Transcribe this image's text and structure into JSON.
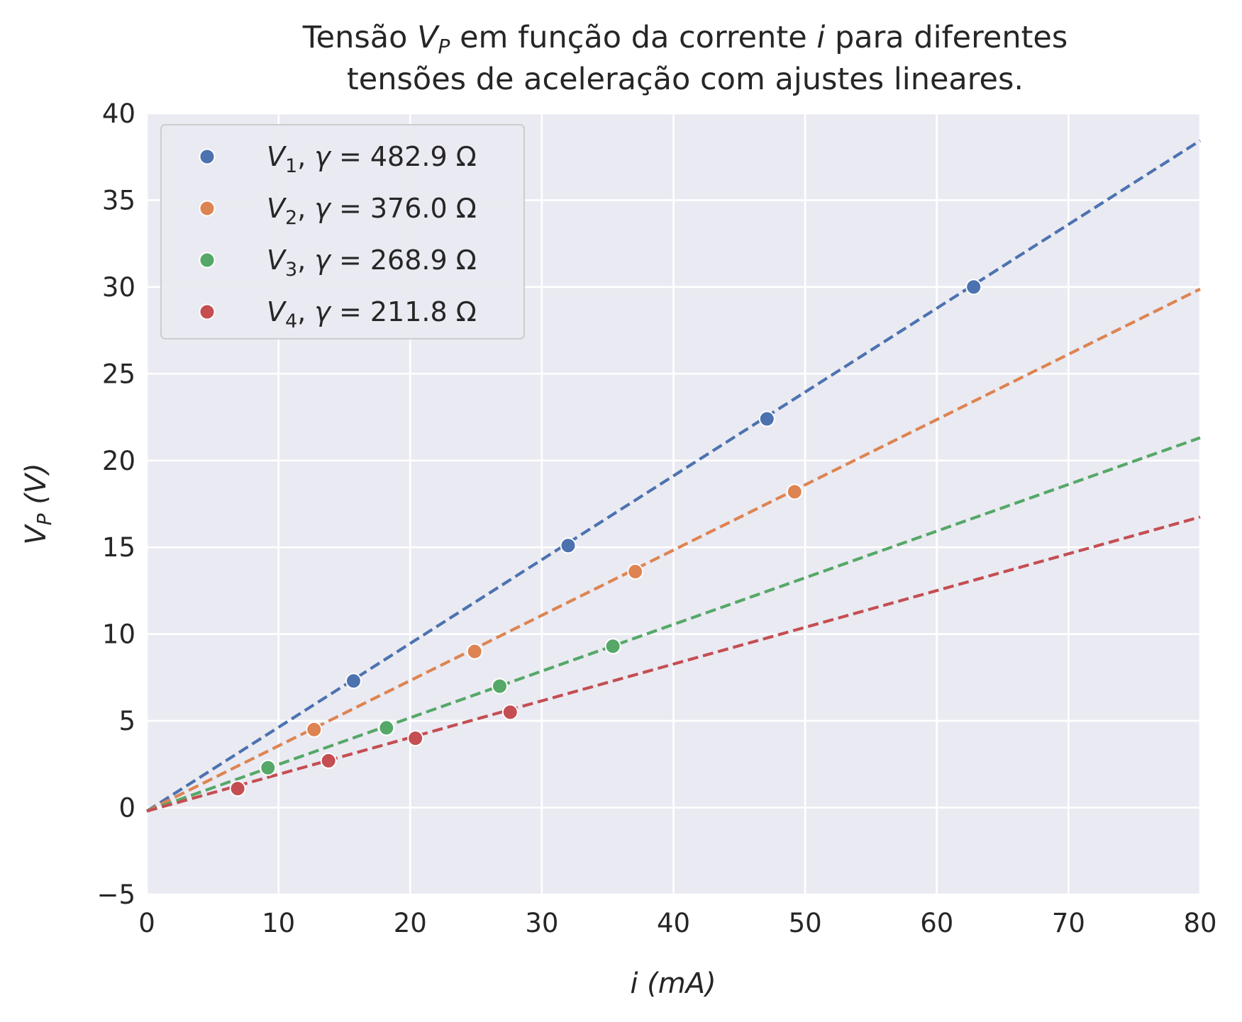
{
  "chart_data": {
    "type": "scatter",
    "title_lines": [
      "Tensão V_P em função da corrente i para diferentes",
      "tensões de aceleração com ajustes lineares."
    ],
    "xlabel": "i (mA)",
    "ylabel": "V_P (V)",
    "xlim": [
      0,
      80
    ],
    "ylim": [
      -5,
      40
    ],
    "x_ticks": [
      0,
      10,
      20,
      30,
      40,
      50,
      60,
      70,
      80
    ],
    "y_ticks": [
      -5,
      0,
      5,
      10,
      15,
      20,
      25,
      30,
      35,
      40
    ],
    "x_tick_labels": [
      "0",
      "10",
      "20",
      "30",
      "40",
      "50",
      "60",
      "70",
      "80"
    ],
    "y_tick_labels": [
      "−5",
      "0",
      "5",
      "10",
      "15",
      "20",
      "25",
      "30",
      "35",
      "40"
    ],
    "grid": true,
    "legend_position": "top-left",
    "series": [
      {
        "name": "V1, γ = 482.9 Ω",
        "color": "#4c72b0",
        "x": [
          15.7,
          32.0,
          47.1,
          62.8
        ],
        "y": [
          7.3,
          15.1,
          22.4,
          30.0
        ],
        "fit": {
          "slope": 0.4829,
          "intercept": -0.2
        }
      },
      {
        "name": "V2, γ = 376.0 Ω",
        "color": "#dd8452",
        "x": [
          12.7,
          24.9,
          37.1,
          49.2
        ],
        "y": [
          4.5,
          9.0,
          13.6,
          18.2
        ],
        "fit": {
          "slope": 0.376,
          "intercept": -0.2
        }
      },
      {
        "name": "V3, γ = 268.9 Ω",
        "color": "#55a868",
        "x": [
          9.2,
          18.2,
          26.8,
          35.4
        ],
        "y": [
          2.3,
          4.6,
          7.0,
          9.3
        ],
        "fit": {
          "slope": 0.2689,
          "intercept": -0.2
        }
      },
      {
        "name": "V4, γ = 211.8 Ω",
        "color": "#c44e52",
        "x": [
          6.9,
          13.8,
          20.4,
          27.6
        ],
        "y": [
          1.1,
          2.7,
          4.0,
          5.5
        ],
        "fit": {
          "slope": 0.2118,
          "intercept": -0.2
        }
      }
    ]
  }
}
